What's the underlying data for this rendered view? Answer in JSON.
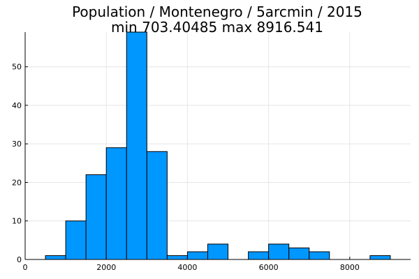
{
  "chart_data": {
    "type": "bar",
    "title": "Population / Montenegro / 5arcmin / 2015",
    "subtitle": "min 703.40485  max 8916.541",
    "xlabel": "",
    "ylabel": "",
    "xlim": [
      0,
      9500
    ],
    "ylim": [
      0,
      59
    ],
    "xticks": [
      0,
      2000,
      4000,
      6000,
      8000
    ],
    "yticks": [
      0,
      10,
      20,
      30,
      40,
      50
    ],
    "grid": true,
    "legend": "none",
    "bin_width": 500,
    "bins": [
      {
        "x0": 500,
        "x1": 1000,
        "count": 1
      },
      {
        "x0": 1000,
        "x1": 1500,
        "count": 10
      },
      {
        "x0": 1500,
        "x1": 2000,
        "count": 22
      },
      {
        "x0": 2000,
        "x1": 2500,
        "count": 29
      },
      {
        "x0": 2500,
        "x1": 3000,
        "count": 59
      },
      {
        "x0": 3000,
        "x1": 3500,
        "count": 28
      },
      {
        "x0": 3500,
        "x1": 4000,
        "count": 1
      },
      {
        "x0": 4000,
        "x1": 4500,
        "count": 2
      },
      {
        "x0": 4500,
        "x1": 5000,
        "count": 4
      },
      {
        "x0": 5500,
        "x1": 6000,
        "count": 2
      },
      {
        "x0": 6000,
        "x1": 6500,
        "count": 4
      },
      {
        "x0": 6500,
        "x1": 7000,
        "count": 3
      },
      {
        "x0": 7000,
        "x1": 7500,
        "count": 2
      },
      {
        "x0": 8500,
        "x1": 9000,
        "count": 1
      }
    ],
    "colors": {
      "bar": "#0097ff",
      "edge": "#000000"
    }
  }
}
